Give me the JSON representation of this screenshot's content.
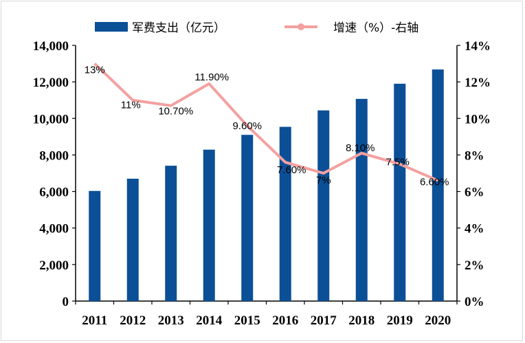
{
  "chart_data": {
    "type": "bar+line",
    "categories": [
      "2011",
      "2012",
      "2013",
      "2014",
      "2015",
      "2016",
      "2017",
      "2018",
      "2019",
      "2020"
    ],
    "series": [
      {
        "name": "军费支出（亿元）",
        "type": "bar",
        "axis": "left",
        "color": "#0b4f96",
        "values": [
          6030,
          6700,
          7410,
          8290,
          9100,
          9540,
          10440,
          11070,
          11900,
          12680
        ]
      },
      {
        "name": "增速（%）-右轴",
        "type": "line",
        "axis": "right",
        "color": "#f4a0a0",
        "values": [
          13,
          11,
          10.7,
          11.9,
          9.6,
          7.6,
          7,
          8.1,
          7.5,
          6.6
        ],
        "labels": [
          "13%",
          "11%",
          "10.70%",
          "11.90%",
          "9.60%",
          "7.60%",
          "7%",
          "8.10%",
          "7.5%",
          "6.60%"
        ]
      }
    ],
    "y_left": {
      "min": 0,
      "max": 14000,
      "ticks": [
        "0",
        "2,000",
        "4,000",
        "6,000",
        "8,000",
        "10,000",
        "12,000",
        "14,000"
      ]
    },
    "y_right": {
      "min": 0,
      "max": 14,
      "ticks": [
        "0%",
        "2%",
        "4%",
        "6%",
        "8%",
        "10%",
        "12%",
        "14%"
      ]
    },
    "legend_position": "top",
    "grid": false
  }
}
